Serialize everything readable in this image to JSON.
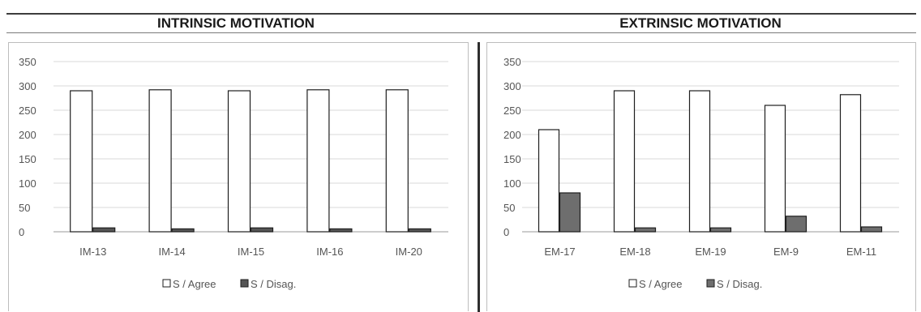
{
  "chart_data": [
    {
      "type": "bar",
      "title": "INTRINSIC MOTIVATION",
      "categories": [
        "IM-13",
        "IM-14",
        "IM-15",
        "IM-16",
        "IM-20"
      ],
      "series": [
        {
          "name": "S / Agree",
          "values": [
            290,
            292,
            290,
            292,
            292
          ],
          "color": "#ffffff"
        },
        {
          "name": "S / Disag.",
          "values": [
            8,
            6,
            8,
            6,
            6
          ],
          "color": "#555555"
        }
      ],
      "yticks": [
        "0",
        "50",
        "100",
        "150",
        "200",
        "250",
        "300",
        "350"
      ],
      "ylim": [
        0,
        350
      ],
      "grid": true,
      "legend": "bottom"
    },
    {
      "type": "bar",
      "title": "EXTRINSIC MOTIVATION",
      "categories": [
        "EM-17",
        "EM-18",
        "EM-19",
        "EM-9",
        "EM-11"
      ],
      "series": [
        {
          "name": "S / Agree",
          "values": [
            210,
            290,
            290,
            260,
            282
          ],
          "color": "#ffffff"
        },
        {
          "name": "S / Disag.",
          "values": [
            80,
            8,
            8,
            32,
            10
          ],
          "color": "#6e6e6e"
        }
      ],
      "yticks": [
        "0",
        "50",
        "100",
        "150",
        "200",
        "250",
        "300",
        "350"
      ],
      "ylim": [
        0,
        350
      ],
      "grid": true,
      "legend": "bottom"
    }
  ]
}
